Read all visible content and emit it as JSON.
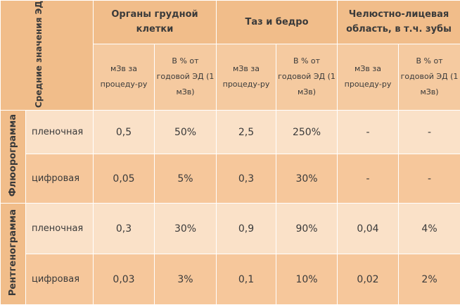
{
  "corner_label": "Средние значения ЭД",
  "groups": [
    {
      "title": "Органы грудной клетки"
    },
    {
      "title": "Таз и бедро"
    },
    {
      "title": "Челюстно-лицевая область, в т.ч. зубы"
    }
  ],
  "subheaders": {
    "per_procedure": "мЗв за процеду-ру",
    "percent_annual": "В % от годовой ЭД (1 мЗв)"
  },
  "sections": [
    {
      "label": "Флюорограмма",
      "rows": [
        {
          "type": "пленочная",
          "values": [
            "0,5",
            "50%",
            "2,5",
            "250%",
            "-",
            "-"
          ]
        },
        {
          "type": "цифровая",
          "values": [
            "0,05",
            "5%",
            "0,3",
            "30%",
            "-",
            "-"
          ]
        }
      ]
    },
    {
      "label": "Рентгенограмма",
      "rows": [
        {
          "type": "пленочная",
          "values": [
            "0,3",
            "30%",
            "0,9",
            "90%",
            "0,04",
            "4%"
          ]
        },
        {
          "type": "цифровая",
          "values": [
            "0,03",
            "3%",
            "0,1",
            "10%",
            "0,02",
            "2%"
          ]
        }
      ]
    }
  ]
}
